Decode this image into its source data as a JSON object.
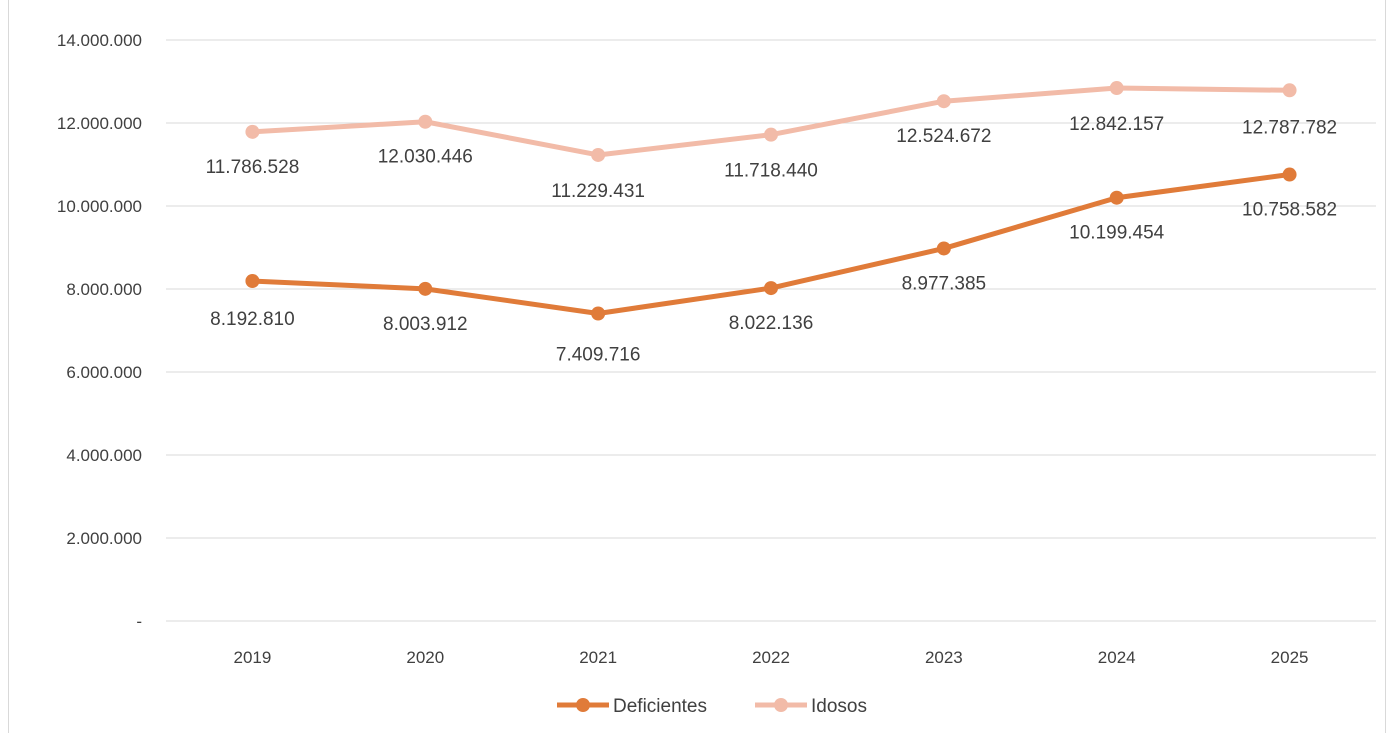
{
  "chart_data": {
    "type": "line",
    "categories": [
      "2019",
      "2020",
      "2021",
      "2022",
      "2023",
      "2024",
      "2025"
    ],
    "series": [
      {
        "name": "Deficientes",
        "color": "#e07b39",
        "values": [
          8192810,
          8003912,
          7409716,
          8022136,
          8977385,
          10199454,
          10758582
        ],
        "labels": [
          "8.192.810",
          "8.003.912",
          "7.409.716",
          "8.022.136",
          "8.977.385",
          "10.199.454",
          "10.758.582"
        ]
      },
      {
        "name": "Idosos",
        "color": "#f2bba8",
        "values": [
          11786528,
          12030446,
          11229431,
          11718440,
          12524672,
          12842157,
          12787782
        ],
        "labels": [
          "11.786.528",
          "12.030.446",
          "11.229.431",
          "11.718.440",
          "12.524.672",
          "12.842.157",
          "12.787.782"
        ]
      }
    ],
    "ylim": [
      0,
      14000000
    ],
    "y_ticks": [
      {
        "value": 0,
        "label": "-"
      },
      {
        "value": 2000000,
        "label": "2.000.000"
      },
      {
        "value": 4000000,
        "label": "4.000.000"
      },
      {
        "value": 6000000,
        "label": "6.000.000"
      },
      {
        "value": 8000000,
        "label": "8.000.000"
      },
      {
        "value": 10000000,
        "label": "10.000.000"
      },
      {
        "value": 12000000,
        "label": "12.000.000"
      },
      {
        "value": 14000000,
        "label": "14.000.000"
      }
    ],
    "grid": true,
    "legend_position": "bottom"
  }
}
